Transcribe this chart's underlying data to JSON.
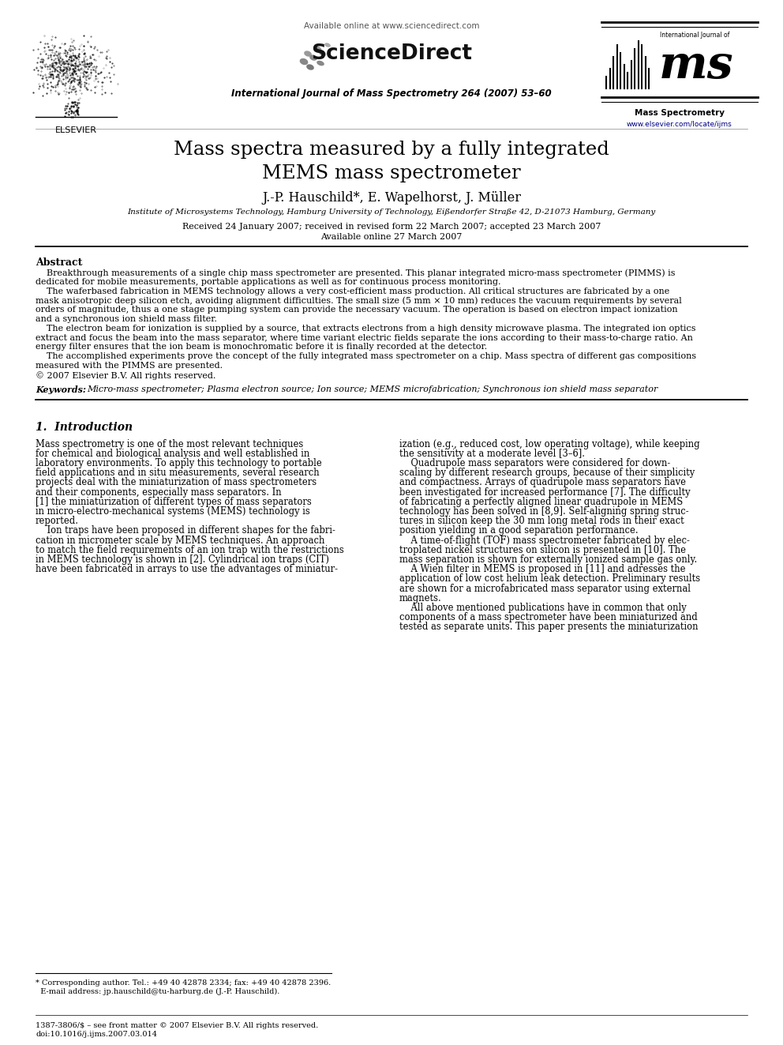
{
  "background_color": "#ffffff",
  "header": {
    "available_online_text": "Available online at www.sciencedirect.com",
    "sciencedirect_text": "ScienceDirect",
    "journal_name": "International Journal of Mass Spectrometry 264 (2007) 53–60",
    "journal_url": "www.elsevier.com/locate/ijms",
    "elsevier_text": "ELSEVIER",
    "ms_label": "Mass Spectrometry",
    "intl_journal_of": "International Journal of"
  },
  "title": "Mass spectra measured by a fully integrated\nMEMS mass spectrometer",
  "authors": "J.-P. Hauschild*, E. Wapelhorst, J. Müller",
  "affiliation": "Institute of Microsystems Technology, Hamburg University of Technology, Eißendorfer Straße 42, D-21073 Hamburg, Germany",
  "received": "Received 24 January 2007; received in revised form 22 March 2007; accepted 23 March 2007",
  "available_online": "Available online 27 March 2007",
  "abstract_title": "Abstract",
  "keywords_label": "Keywords:",
  "keywords_text": "  Micro-mass spectrometer; Plasma electron source; Ion source; MEMS microfabrication; Synchronous ion shield mass separator",
  "section1_title": "1.  Introduction",
  "footnote_issn": "1387-3806/$ – see front matter © 2007 Elsevier B.V. All rights reserved.",
  "footnote_doi": "doi:10.1016/j.ijms.2007.03.014",
  "footnote_line1": "* Corresponding author. Tel.: +49 40 42878 2334; fax: +49 40 42878 2396.",
  "footnote_line2": "  E-mail address: jp.hauschild@tu-harburg.de (J.-P. Hauschild).",
  "abstract_lines": [
    "    Breakthrough measurements of a single chip mass spectrometer are presented. This planar integrated micro-mass spectrometer (PIMMS) is",
    "dedicated for mobile measurements, portable applications as well as for continuous process monitoring.",
    "    The waferbased fabrication in MEMS technology allows a very cost-efficient mass production. All critical structures are fabricated by a one",
    "mask anisotropic deep silicon etch, avoiding alignment difficulties. The small size (5 mm × 10 mm) reduces the vacuum requirements by several",
    "orders of magnitude, thus a one stage pumping system can provide the necessary vacuum. The operation is based on electron impact ionization",
    "and a synchronous ion shield mass filter.",
    "    The electron beam for ionization is supplied by a source, that extracts electrons from a high density microwave plasma. The integrated ion optics",
    "extract and focus the beam into the mass separator, where time variant electric fields separate the ions according to their mass-to-charge ratio. An",
    "energy filter ensures that the ion beam is monochromatic before it is finally recorded at the detector.",
    "    The accomplished experiments prove the concept of the fully integrated mass spectrometer on a chip. Mass spectra of different gas compositions",
    "measured with the PIMMS are presented.",
    "© 2007 Elsevier B.V. All rights reserved."
  ],
  "col1_lines": [
    "Mass spectrometry is one of the most relevant techniques",
    "for chemical and biological analysis and well established in",
    "laboratory environments. To apply this technology to portable",
    "field applications and in situ measurements, several research",
    "projects deal with the miniaturization of mass spectrometers",
    "and their components, especially mass separators. In",
    "[1] the miniaturization of different types of mass separators",
    "in micro-electro-mechanical systems (MEMS) technology is",
    "reported.",
    "    Ion traps have been proposed in different shapes for the fabri-",
    "cation in micrometer scale by MEMS techniques. An approach",
    "to match the field requirements of an ion trap with the restrictions",
    "in MEMS technology is shown in [2]. Cylindrical ion traps (CIT)",
    "have been fabricated in arrays to use the advantages of miniatur-"
  ],
  "col2_lines": [
    "ization (e.g., reduced cost, low operating voltage), while keeping",
    "the sensitivity at a moderate level [3–6].",
    "    Quadrupole mass separators were considered for down-",
    "scaling by different research groups, because of their simplicity",
    "and compactness. Arrays of quadrupole mass separators have",
    "been investigated for increased performance [7]. The difficulty",
    "of fabricating a perfectly aligned linear quadrupole in MEMS",
    "technology has been solved in [8,9]. Self-aligning spring struc-",
    "tures in silicon keep the 30 mm long metal rods in their exact",
    "position yielding in a good separation performance.",
    "    A time-of-flight (TOF) mass spectrometer fabricated by elec-",
    "troplated nickel structures on silicon is presented in [10]. The",
    "mass separation is shown for externally ionized sample gas only.",
    "    A Wien filter in MEMS is proposed in [11] and adresses the",
    "application of low cost helium leak detection. Preliminary results",
    "are shown for a microfabricated mass separator using external",
    "magnets.",
    "    All above mentioned publications have in common that only",
    "components of a mass spectrometer have been miniaturized and",
    "tested as separate units. This paper presents the miniaturization"
  ]
}
